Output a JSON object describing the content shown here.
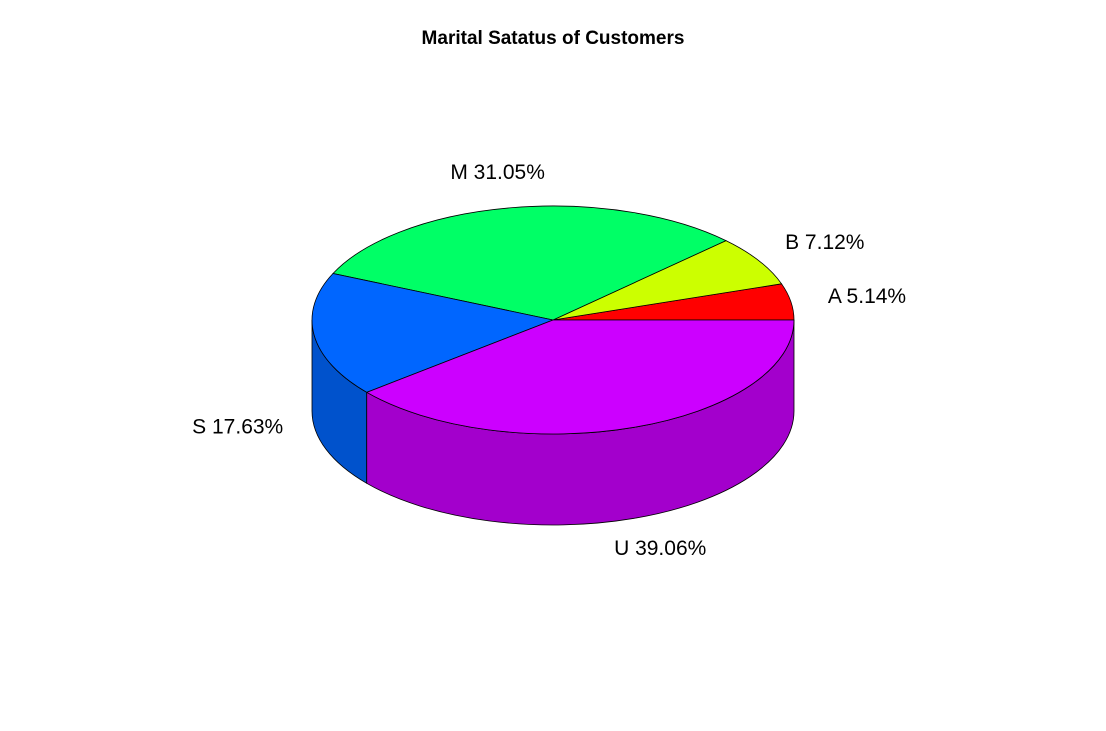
{
  "chart_data": {
    "type": "pie",
    "style": "3d",
    "title": "Marital Satatus of Customers",
    "slices": [
      {
        "category": "A",
        "value": 5.14,
        "label": "A 5.14%",
        "color": "#ff0000"
      },
      {
        "category": "B",
        "value": 7.12,
        "label": "B 7.12%",
        "color": "#ccff00"
      },
      {
        "category": "M",
        "value": 31.05,
        "label": "M 31.05%",
        "color": "#00ff66"
      },
      {
        "category": "S",
        "value": 17.63,
        "label": "S 17.63%",
        "color": "#0066ff"
      },
      {
        "category": "U",
        "value": 39.06,
        "label": "U 39.06%",
        "color": "#cc00ff"
      }
    ]
  }
}
